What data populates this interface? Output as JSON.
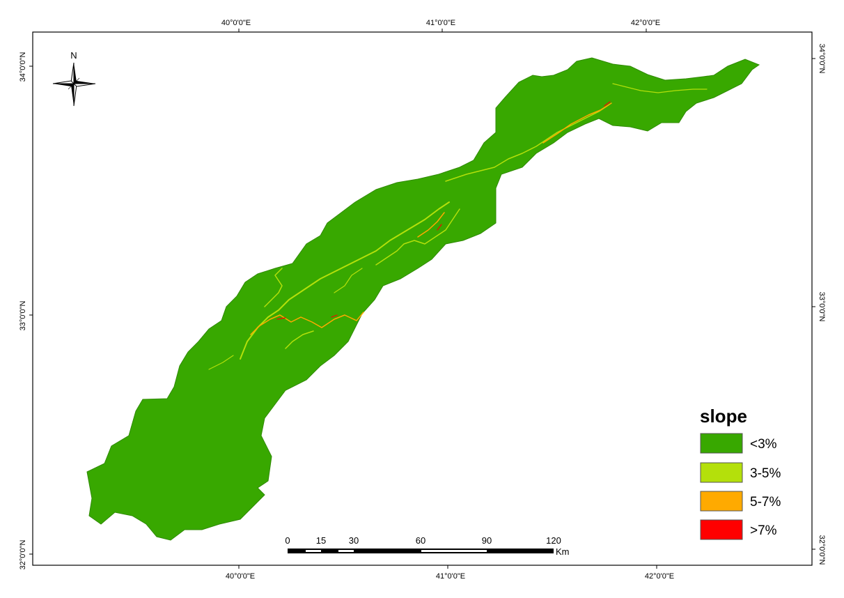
{
  "map": {
    "graticule": {
      "top": [
        "40°0'0\"E",
        "41°0'0\"E",
        "42°0'0\"E"
      ],
      "bottom": [
        "40°0'0\"E",
        "41°0'0\"E",
        "42°0'0\"E"
      ],
      "left": [
        "34°0'0\"N",
        "33°0'0\"N",
        "32°0'0\"N"
      ],
      "right": [
        "34°0'0\"N",
        "33°0'0\"N",
        "32°0'0\"N"
      ]
    },
    "north_arrow": {
      "label": "N"
    },
    "scale_bar": {
      "ticks": [
        "0",
        "15",
        "30",
        "60",
        "90",
        "120"
      ],
      "unit": "Km"
    },
    "legend": {
      "title": "slope",
      "items": [
        {
          "label": "<3%",
          "color": "#38a800"
        },
        {
          "label": "3-5%",
          "color": "#b4e00b"
        },
        {
          "label": "5-7%",
          "color": "#ffaa00"
        },
        {
          "label": ">7%",
          "color": "#ff0000"
        }
      ]
    }
  }
}
